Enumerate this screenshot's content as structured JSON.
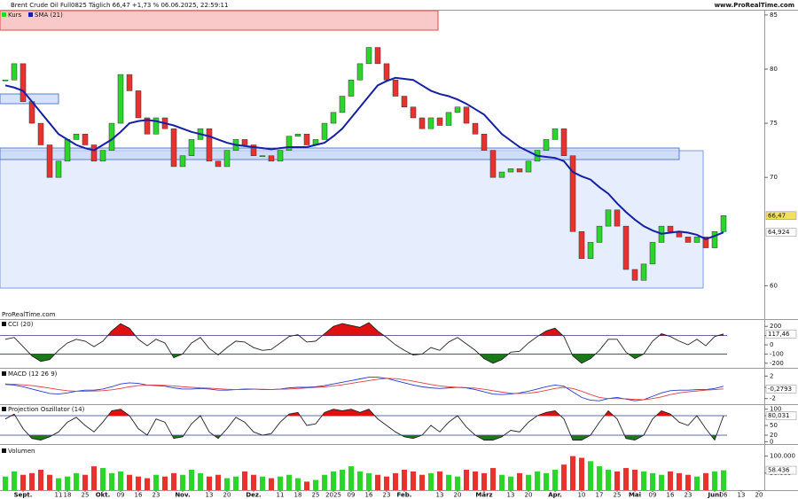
{
  "header": {
    "title": "Brent Crude Oil Full0825 Täglich 66,47 +1,73 % 06.06.2025, 22:59:11",
    "site": "www.ProRealTime.com"
  },
  "chart_data": [
    {
      "type": "candlestick",
      "brand": "ProRealTime.com",
      "series": [
        {
          "name": "Kurs",
          "color": "#2bd52b",
          "down_color": "#e8322e",
          "last_label": "66,47",
          "values": [
            79,
            80.5,
            77,
            75,
            73,
            70,
            71.5,
            73.5,
            74,
            73,
            71.5,
            72.5,
            75,
            79.5,
            78,
            75.5,
            74,
            75.5,
            74.5,
            71,
            72,
            73.5,
            74.5,
            71.5,
            71,
            72.5,
            73.5,
            73,
            72,
            72,
            71.5,
            72.5,
            73.8,
            74,
            73,
            73.5,
            75,
            76,
            77.5,
            79,
            80.5,
            82,
            80.5,
            79,
            77.5,
            76.5,
            75.5,
            74.5,
            75.5,
            74.8,
            76,
            76.5,
            75,
            74,
            72.5,
            70,
            70.5,
            70.8,
            70.5,
            71.5,
            72.5,
            73.5,
            74.5,
            72,
            65,
            62.5,
            64,
            65.5,
            67,
            65.5,
            61.5,
            60.5,
            62,
            64,
            65.5,
            65,
            64.5,
            64,
            64.5,
            63.5,
            65,
            66.47,
            null,
            null,
            null,
            null
          ]
        },
        {
          "name": "SMA (21)",
          "color": "#1520a6",
          "last_label": "64,924",
          "values": [
            78.5,
            78.3,
            78,
            77,
            76,
            75,
            74,
            73.5,
            73,
            72.7,
            72.5,
            73,
            73.5,
            74.2,
            75,
            75.2,
            75.3,
            75.2,
            75,
            74.8,
            74.5,
            74.2,
            74,
            73.8,
            73.5,
            73.2,
            73,
            72.9,
            72.8,
            72.7,
            72.6,
            72.7,
            72.8,
            72.8,
            72.8,
            73,
            73.2,
            73.8,
            74.5,
            75.5,
            76.5,
            77.5,
            78.5,
            78.9,
            79.2,
            79.1,
            79,
            78.5,
            78,
            77.7,
            77.5,
            77.2,
            76.8,
            76.3,
            75.8,
            74.9,
            74,
            73.4,
            72.8,
            72.4,
            72,
            71.9,
            71.8,
            71.5,
            70.5,
            70.1,
            69.8,
            69.1,
            68.5,
            67.6,
            66.8,
            66.1,
            65.5,
            65.1,
            64.8,
            64.9,
            65,
            64.9,
            64.7,
            64.3,
            64.6,
            64.924,
            null,
            null,
            null,
            null
          ]
        }
      ],
      "ylim": [
        57.9,
        85.4
      ],
      "yticks": [
        60,
        70,
        75,
        80,
        85
      ]
    },
    {
      "type": "line",
      "title": "CCI (20)",
      "levels": [
        100,
        -100
      ],
      "level_colors": [
        "#e01010",
        "#1a7a1a"
      ],
      "series": [
        {
          "color": "#222222",
          "last_label": "117,46",
          "values": [
            60,
            80,
            -20,
            -120,
            -180,
            -160,
            -60,
            20,
            60,
            40,
            -20,
            40,
            150,
            230,
            180,
            60,
            -10,
            60,
            20,
            -140,
            -100,
            20,
            80,
            -40,
            -110,
            -30,
            40,
            30,
            -30,
            -60,
            -50,
            20,
            90,
            110,
            30,
            40,
            120,
            200,
            230,
            210,
            190,
            240,
            150,
            80,
            0,
            -60,
            -110,
            -100,
            -30,
            -60,
            30,
            80,
            10,
            -60,
            -150,
            -200,
            -160,
            -80,
            -70,
            20,
            90,
            150,
            180,
            90,
            -120,
            -200,
            -150,
            -60,
            60,
            60,
            -80,
            -150,
            -100,
            40,
            120,
            90,
            40,
            0,
            60,
            -10,
            90,
            117.46,
            null,
            null,
            null,
            null
          ]
        }
      ],
      "ylim": [
        -240,
        260
      ],
      "yticks": [
        -200,
        -100,
        0,
        100,
        200
      ]
    },
    {
      "type": "line",
      "title": "MACD (12 26 9)",
      "series": [
        {
          "color": "#2a3ad0",
          "values": [
            0.5,
            0.4,
            0.1,
            -0.3,
            -0.7,
            -1.1,
            -1.2,
            -1.0,
            -0.7,
            -0.5,
            -0.5,
            -0.3,
            0.1,
            0.6,
            0.8,
            0.7,
            0.4,
            0.3,
            0.2,
            -0.1,
            -0.3,
            -0.3,
            -0.2,
            -0.3,
            -0.5,
            -0.5,
            -0.4,
            -0.3,
            -0.3,
            -0.4,
            -0.4,
            -0.3,
            -0.1,
            0.0,
            0.0,
            0.1,
            0.3,
            0.6,
            0.9,
            1.2,
            1.5,
            1.8,
            1.8,
            1.6,
            1.2,
            0.8,
            0.4,
            0.1,
            -0.1,
            -0.2,
            -0.1,
            0.0,
            -0.1,
            -0.4,
            -0.8,
            -1.2,
            -1.3,
            -1.2,
            -1.0,
            -0.7,
            -0.3,
            0.1,
            0.4,
            0.2,
            -0.8,
            -1.8,
            -2.3,
            -2.4,
            -2.0,
            -1.8,
            -2.1,
            -2.4,
            -2.2,
            -1.6,
            -1.0,
            -0.6,
            -0.5,
            -0.5,
            -0.4,
            -0.4,
            -0.2,
            0.19,
            null,
            null,
            null,
            null
          ]
        },
        {
          "color": "#e04040",
          "last_label": "-0,2793",
          "values": [
            0.6,
            0.55,
            0.45,
            0.3,
            0.1,
            -0.15,
            -0.4,
            -0.6,
            -0.7,
            -0.7,
            -0.65,
            -0.6,
            -0.45,
            -0.2,
            0.1,
            0.3,
            0.4,
            0.4,
            0.35,
            0.25,
            0.1,
            0,
            -0.1,
            -0.15,
            -0.25,
            -0.35,
            -0.4,
            -0.4,
            -0.35,
            -0.35,
            -0.38,
            -0.35,
            -0.3,
            -0.2,
            -0.1,
            0,
            0.1,
            0.25,
            0.45,
            0.7,
            0.95,
            1.2,
            1.45,
            1.6,
            1.55,
            1.35,
            1.1,
            0.8,
            0.5,
            0.25,
            0.1,
            0.0,
            -0.05,
            -0.15,
            -0.35,
            -0.6,
            -0.85,
            -1.05,
            -1.1,
            -1.05,
            -0.85,
            -0.55,
            -0.2,
            0.0,
            -0.2,
            -0.7,
            -1.3,
            -1.8,
            -2.0,
            -2.0,
            -2.05,
            -2.15,
            -2.2,
            -2.0,
            -1.7,
            -1.3,
            -1.0,
            -0.8,
            -0.65,
            -0.5,
            -0.4,
            -0.2793,
            null,
            null,
            null,
            null
          ]
        }
      ],
      "ylim": [
        -3,
        3
      ],
      "yticks": [
        -2,
        0,
        2
      ]
    },
    {
      "type": "line",
      "title": "Projection Oszillator (14)",
      "levels": [
        80,
        20
      ],
      "level_colors": [
        "#e01010",
        "#1a7a1a"
      ],
      "series": [
        {
          "color": "#222222",
          "last_label": "80,031",
          "values": [
            70,
            85,
            40,
            10,
            5,
            15,
            30,
            60,
            75,
            50,
            30,
            60,
            95,
            100,
            80,
            40,
            20,
            70,
            60,
            10,
            15,
            55,
            80,
            30,
            10,
            40,
            75,
            60,
            30,
            20,
            25,
            60,
            85,
            90,
            50,
            55,
            90,
            100,
            95,
            100,
            90,
            100,
            70,
            50,
            30,
            15,
            10,
            20,
            50,
            30,
            60,
            80,
            45,
            20,
            5,
            5,
            15,
            35,
            30,
            60,
            80,
            90,
            95,
            70,
            5,
            5,
            20,
            60,
            95,
            70,
            10,
            5,
            20,
            70,
            95,
            85,
            60,
            50,
            80,
            40,
            5,
            80.031,
            null,
            null,
            null,
            null
          ]
        }
      ],
      "ylim": [
        -10,
        110
      ],
      "yticks": [
        0,
        20,
        50,
        80,
        100
      ]
    },
    {
      "type": "bar",
      "title": "Volumen",
      "categories": [
        null,
        null,
        "Sept.",
        null,
        null,
        null,
        "11",
        "18",
        null,
        "25",
        null,
        "Okt.",
        null,
        "09",
        null,
        "16",
        null,
        "23",
        null,
        null,
        "Nov.",
        null,
        null,
        "13",
        null,
        "20",
        null,
        null,
        "Dez.",
        null,
        null,
        "11",
        null,
        "18",
        null,
        "25",
        null,
        "2025",
        null,
        "09",
        null,
        "16",
        null,
        "23",
        null,
        "Feb.",
        null,
        null,
        null,
        "13",
        null,
        "20",
        null,
        null,
        "März",
        null,
        null,
        "13",
        null,
        "20",
        null,
        null,
        "Apr.",
        null,
        null,
        "10",
        null,
        "17",
        null,
        "25",
        null,
        "Mai",
        null,
        "09",
        null,
        "16",
        null,
        "23",
        null,
        null,
        "Juni",
        "06",
        null,
        "13",
        null,
        "20"
      ],
      "series": [
        {
          "color": "#2bd52b",
          "down_color": "#e8322e",
          "last_label": "58.436",
          "values": [
            40000,
            55000,
            45000,
            50000,
            60000,
            45000,
            35000,
            40000,
            50000,
            45000,
            70000,
            65000,
            50000,
            55000,
            45000,
            40000,
            35000,
            45000,
            40000,
            50000,
            45000,
            60000,
            50000,
            40000,
            45000,
            35000,
            40000,
            55000,
            45000,
            40000,
            35000,
            40000,
            45000,
            35000,
            25000,
            30000,
            45000,
            55000,
            60000,
            70000,
            55000,
            50000,
            45000,
            40000,
            50000,
            60000,
            55000,
            45000,
            50000,
            55000,
            45000,
            40000,
            60000,
            55000,
            50000,
            65000,
            45000,
            40000,
            50000,
            45000,
            55000,
            50000,
            60000,
            75000,
            100000,
            95000,
            85000,
            70000,
            60000,
            55000,
            65000,
            60000,
            55000,
            50000,
            45000,
            55000,
            50000,
            45000,
            40000,
            50000,
            55000,
            58436,
            null,
            null,
            null,
            null
          ]
        }
      ],
      "ylim": [
        0,
        125000
      ],
      "yticks": [
        {
          "value": 50000,
          "label": "50.000"
        },
        {
          "value": 100000,
          "label": "100.000"
        }
      ]
    }
  ]
}
